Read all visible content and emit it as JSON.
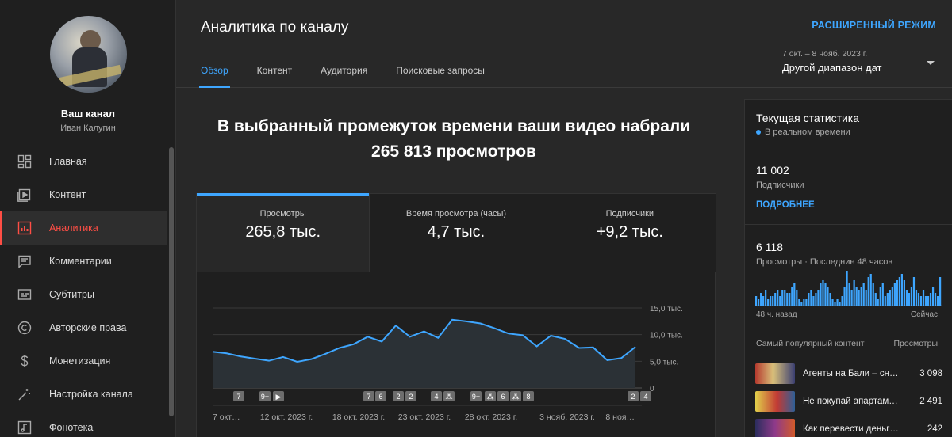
{
  "sidebar": {
    "channel_name": "Ваш канал",
    "channel_user": "Иван Калугин",
    "items": [
      {
        "label": "Главная",
        "icon": "dashboard-icon"
      },
      {
        "label": "Контент",
        "icon": "video-library-icon"
      },
      {
        "label": "Аналитика",
        "icon": "analytics-icon",
        "active": true
      },
      {
        "label": "Комментарии",
        "icon": "comments-icon"
      },
      {
        "label": "Субтитры",
        "icon": "subtitles-icon"
      },
      {
        "label": "Авторские права",
        "icon": "copyright-icon"
      },
      {
        "label": "Монетизация",
        "icon": "dollar-icon"
      },
      {
        "label": "Настройка канала",
        "icon": "magic-wand-icon"
      },
      {
        "label": "Фонотека",
        "icon": "music-icon"
      }
    ]
  },
  "header": {
    "title": "Аналитика по каналу",
    "advanced_mode": "РАСШИРЕННЫЙ РЕЖИМ",
    "tabs": [
      "Обзор",
      "Контент",
      "Аудитория",
      "Поисковые запросы"
    ],
    "date_range_small": "7 окт. – 8 нояб. 2023 г.",
    "date_range": "Другой диапазон дат"
  },
  "main": {
    "headline_line1": "В выбранный промежуток времени ваши видео набрали",
    "headline_line2": "265 813 просмотров",
    "metrics": [
      {
        "label": "Просмотры",
        "value": "265,8 тыс."
      },
      {
        "label": "Время просмотра (часы)",
        "value": "4,7 тыс."
      },
      {
        "label": "Подписчики",
        "value": "+9,2 тыс."
      }
    ]
  },
  "chart_data": {
    "type": "area",
    "series": [
      {
        "values": [
          6.8,
          6.5,
          5.9,
          5.5,
          5.1,
          5.8,
          4.9,
          5.4,
          6.4,
          7.5,
          8.2,
          9.6,
          8.7,
          11.7,
          9.6,
          10.6,
          9.4,
          12.8,
          12.5,
          12.1,
          11.2,
          10.2,
          9.9,
          7.8,
          9.8,
          9.2,
          7.5,
          7.6,
          5.2,
          5.6,
          7.7
        ]
      }
    ],
    "ylim": [
      0,
      15
    ],
    "yticks": [
      "15,0 тыс.",
      "10,0 тыс.",
      "5,0 тыс.",
      "0"
    ],
    "xticks": [
      "7 окт…",
      "12 окт. 2023 г.",
      "18 окт. 2023 г.",
      "23 окт. 2023 г.",
      "28 окт. 2023 г.",
      "3 нояб. 2023 г.",
      "8 ноя…"
    ],
    "markers": [
      "7",
      "9+",
      "▶",
      "7",
      "6",
      "2",
      "2",
      "4",
      "⁂",
      "9+",
      "⁂",
      "6",
      "⁂",
      "8",
      "2",
      "4"
    ],
    "line_color": "#3ea6ff",
    "fill_color": "#2b3136"
  },
  "realtime": {
    "title": "Текущая статистика",
    "live": "В реальном времени",
    "subs": "11 002",
    "subs_label": "Подписчики",
    "more": "ПОДРОБНЕЕ",
    "views": "6 118",
    "views_label": "Просмотры · Последние 48 часов",
    "axis_left": "48 ч. назад",
    "axis_right": "Сейчас",
    "bars": [
      3,
      2,
      4,
      3,
      5,
      2,
      3,
      3,
      4,
      5,
      3,
      5,
      5,
      4,
      4,
      6,
      7,
      5,
      2,
      1,
      2,
      2,
      4,
      5,
      3,
      4,
      5,
      7,
      8,
      7,
      6,
      4,
      2,
      1,
      2,
      1,
      3,
      6,
      11,
      7,
      5,
      8,
      6,
      5,
      6,
      7,
      5,
      9,
      10,
      7,
      4,
      2,
      6,
      7,
      3,
      4,
      5,
      6,
      7,
      8,
      9,
      10,
      8,
      5,
      4,
      6,
      9,
      5,
      4,
      3,
      5,
      3,
      3,
      4,
      6,
      4,
      3,
      9
    ],
    "popular_label": "Самый популярный контент",
    "popular_views_label": "Просмотры",
    "videos": [
      {
        "title": "Агенты на Бали – сн…",
        "views": "3 098"
      },
      {
        "title": "Не покупай апартам…",
        "views": "2 491"
      },
      {
        "title": "Как перевести деньг…",
        "views": "242"
      }
    ]
  }
}
